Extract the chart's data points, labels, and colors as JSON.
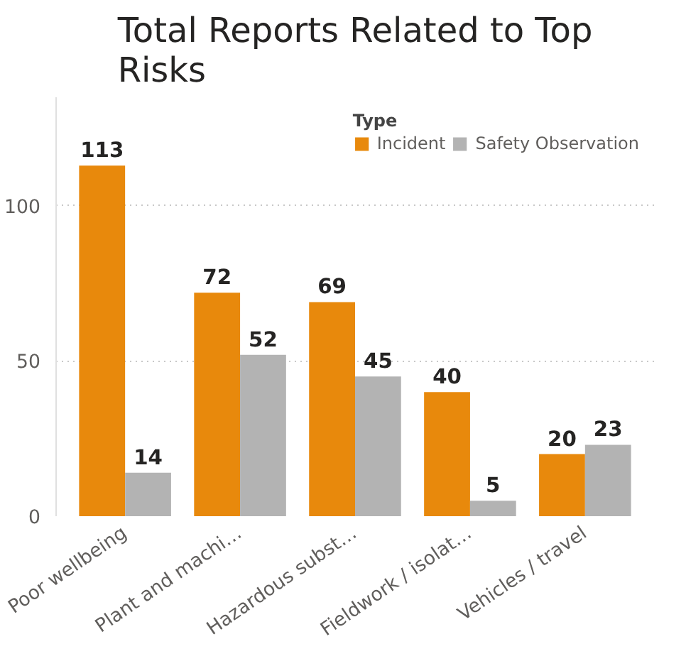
{
  "chart_data": {
    "type": "bar",
    "title": "Total Reports Related to Top Risks",
    "legend_title": "Type",
    "categories": [
      "Poor wellbeing",
      "Plant and machi…",
      "Hazardous subst…",
      "Fieldwork / isolat…",
      "Vehicles / travel"
    ],
    "series": [
      {
        "name": "Incident",
        "color": "#e8890c",
        "values": [
          113,
          72,
          69,
          40,
          20
        ]
      },
      {
        "name": "Safety Observation",
        "color": "#b3b3b3",
        "values": [
          14,
          52,
          45,
          5,
          23
        ]
      }
    ],
    "ylim": [
      0,
      135
    ],
    "yticks": [
      0,
      50,
      100
    ],
    "grid": "y",
    "legend": "top right",
    "data_labels": true
  }
}
